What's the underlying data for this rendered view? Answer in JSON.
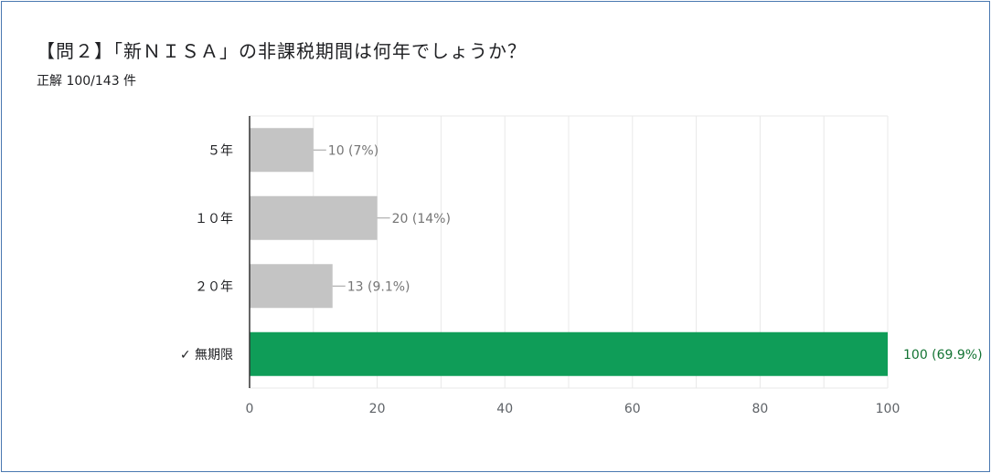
{
  "title": "【問２】「新ＮＩＳＡ」の非課税期間は何年でしょうか？",
  "subtitle": "正解 100/143 件",
  "colors": {
    "bar_default": "#c4c4c4",
    "bar_correct": "#0f9d58",
    "label_correct": "#137333",
    "label_default": "#757575",
    "grid": "#e8e8e8",
    "axis": "#333333",
    "frame": "#4a78b0"
  },
  "chart_data": {
    "type": "bar",
    "orientation": "horizontal",
    "categories": [
      "５年",
      "１０年",
      "２０年",
      "無期限"
    ],
    "correct_marker": "✓",
    "correct_index": 3,
    "values": [
      10,
      20,
      13,
      100
    ],
    "data_labels": [
      "10 (7%)",
      "20 (14%)",
      "13 (9.1%)",
      "100 (69.9%)"
    ],
    "xlim": [
      0,
      100
    ],
    "xticks": [
      0,
      20,
      40,
      60,
      80,
      100
    ],
    "grid": true
  }
}
